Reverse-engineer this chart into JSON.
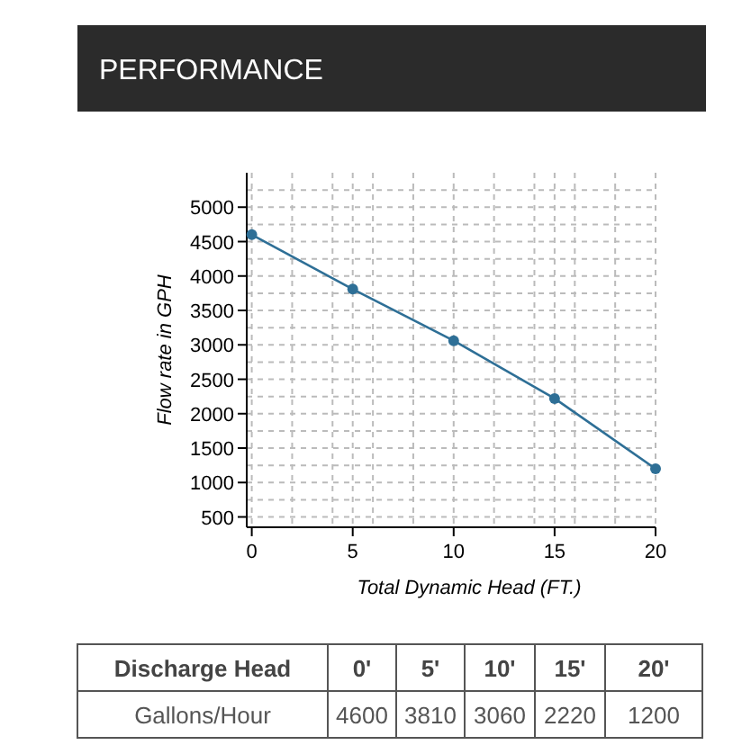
{
  "chart_data": {
    "type": "line",
    "title": "PERFORMANCE",
    "xlabel": "Total Dynamic Head (FT.)",
    "ylabel": "Flow rate in GPH",
    "x": [
      0,
      5,
      10,
      15,
      20
    ],
    "series": [
      {
        "color": "#2e6f96",
        "values": [
          4600,
          3810,
          3060,
          2220,
          1200
        ]
      }
    ],
    "xlim": [
      -0.25,
      20
    ],
    "xticks": [
      0,
      {
        "value": 2,
        "label": null
      },
      {
        "value": 4,
        "label": null
      },
      5,
      {
        "value": 6,
        "label": null
      },
      {
        "value": 8,
        "label": null
      },
      10,
      {
        "value": 12,
        "label": null
      },
      {
        "value": 14,
        "label": null
      },
      15,
      {
        "value": 16,
        "label": null
      },
      {
        "value": 18,
        "label": null
      },
      20
    ],
    "ylim": [
      350,
      5500
    ],
    "yticks": [
      500,
      {
        "value": 750,
        "label": null
      },
      1000,
      {
        "value": 1250,
        "label": null
      },
      1500,
      {
        "value": 1750,
        "label": null
      },
      2000,
      {
        "value": 2250,
        "label": null
      },
      2500,
      {
        "value": 2750,
        "label": null
      },
      3000,
      {
        "value": 3250,
        "label": null
      },
      3500,
      {
        "value": 3750,
        "label": null
      },
      4000,
      {
        "value": 4250,
        "label": null
      },
      4500,
      {
        "value": 4750,
        "label": null
      },
      5000,
      {
        "value": 5250,
        "label": null
      }
    ],
    "grid": true,
    "marker": "circle",
    "line_style": "solid",
    "annotations": [
      "Discharge Head",
      "0'",
      "5'",
      "10'",
      "15'",
      "20'",
      "Gallons/Hour",
      "4600",
      "3810",
      "3060",
      "2220",
      "1200"
    ]
  }
}
